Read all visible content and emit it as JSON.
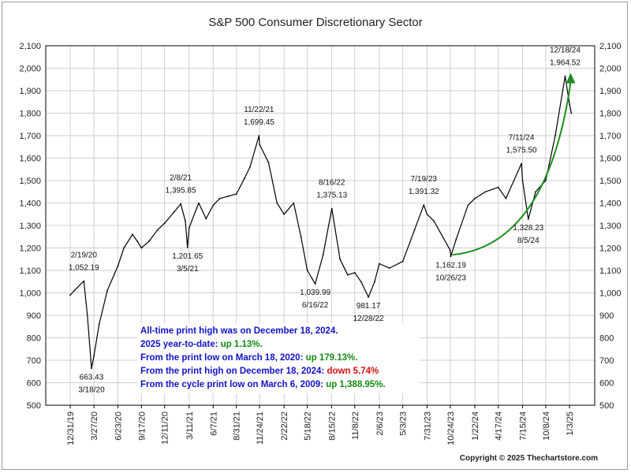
{
  "chart_data": {
    "type": "line",
    "title": "S&P 500 Consumer Discretionary Sector",
    "ylim": [
      500,
      2100
    ],
    "y_ticks": [
      "500",
      "600",
      "700",
      "800",
      "900",
      "1,000",
      "1,100",
      "1,200",
      "1,300",
      "1,400",
      "1,500",
      "1,600",
      "1,700",
      "1,800",
      "1,900",
      "2,000",
      "2,100"
    ],
    "x_tick_labels": [
      "12/31/19",
      "3/27/20",
      "6/23/20",
      "9/17/20",
      "12/11/20",
      "3/11/21",
      "6/7/21",
      "8/31/21",
      "11/24/21",
      "2/22/22",
      "5/18/22",
      "8/15/22",
      "11/8/22",
      "2/6/23",
      "5/3/23",
      "7/31/23",
      "10/24/23",
      "1/22/24",
      "4/17/24",
      "7/15/24",
      "10/8/24",
      "1/3/25"
    ],
    "grid": true,
    "series": [
      {
        "x": [
          "12/31/19",
          "1/15/20",
          "2/19/20",
          "3/3/20",
          "3/18/20",
          "3/27/20",
          "4/15/20",
          "5/15/20",
          "6/23/20",
          "7/15/20",
          "8/15/20",
          "9/2/20",
          "9/17/20",
          "10/15/20",
          "11/15/20",
          "12/11/20",
          "1/15/21",
          "2/8/21",
          "2/25/21",
          "3/5/21",
          "3/11/21",
          "4/15/21",
          "5/12/21",
          "6/7/21",
          "7/1/21",
          "8/1/21",
          "8/31/21",
          "9/30/21",
          "10/20/21",
          "11/22/21",
          "11/24/21",
          "12/27/21",
          "1/27/22",
          "2/22/22",
          "3/29/22",
          "4/25/22",
          "5/18/22",
          "6/16/22",
          "7/15/22",
          "8/16/22",
          "9/15/22",
          "10/13/22",
          "11/8/22",
          "12/1/22",
          "12/28/22",
          "1/20/23",
          "2/6/23",
          "3/15/23",
          "5/3/23",
          "6/15/23",
          "7/19/23",
          "7/31/23",
          "8/25/23",
          "10/24/23",
          "10/26/23",
          "11/15/23",
          "12/28/23",
          "1/22/24",
          "3/1/24",
          "4/17/24",
          "5/15/24",
          "7/11/24",
          "7/15/24",
          "8/5/24",
          "9/1/24",
          "10/8/24",
          "11/12/24",
          "12/18/24",
          "1/3/25",
          "1/10/25"
        ],
        "values": [
          990,
          1010,
          1052.19,
          900,
          663.43,
          720,
          860,
          1010,
          1120,
          1200,
          1260,
          1230,
          1200,
          1230,
          1280,
          1310,
          1360,
          1395.85,
          1320,
          1201.65,
          1290,
          1400,
          1330,
          1390,
          1420,
          1430,
          1440,
          1510,
          1560,
          1699.45,
          1660,
          1580,
          1400,
          1350,
          1400,
          1250,
          1100,
          1039.99,
          1170,
          1375.13,
          1150,
          1080,
          1090,
          1050,
          981.17,
          1050,
          1130,
          1110,
          1140,
          1280,
          1391.32,
          1350,
          1320,
          1190,
          1162.19,
          1240,
          1390,
          1420,
          1450,
          1470,
          1420,
          1575.5,
          1500,
          1328.23,
          1450,
          1500,
          1700,
          1964.52,
          1840,
          1800
        ]
      }
    ],
    "annotations": [
      {
        "date": "2/19/20",
        "value": 1052.19,
        "date_text": "2/19/20",
        "value_text": "1,052.19",
        "position": "above"
      },
      {
        "date": "3/18/20",
        "value": 663.43,
        "date_text": "3/18/20",
        "value_text": "663.43",
        "position": "below"
      },
      {
        "date": "2/8/21",
        "value": 1395.85,
        "date_text": "2/8/21",
        "value_text": "1,395.85",
        "position": "above"
      },
      {
        "date": "3/5/21",
        "value": 1201.65,
        "date_text": "3/5/21",
        "value_text": "1,201.65",
        "position": "below"
      },
      {
        "date": "11/22/21",
        "value": 1699.45,
        "date_text": "11/22/21",
        "value_text": "1,699.45",
        "position": "above"
      },
      {
        "date": "6/16/22",
        "value": 1039.99,
        "date_text": "6/16/22",
        "value_text": "1,039.99",
        "position": "below"
      },
      {
        "date": "8/16/22",
        "value": 1375.13,
        "date_text": "8/16/22",
        "value_text": "1,375.13",
        "position": "above"
      },
      {
        "date": "12/28/22",
        "value": 981.17,
        "date_text": "12/28/22",
        "value_text": "981.17",
        "position": "below"
      },
      {
        "date": "7/19/23",
        "value": 1391.32,
        "date_text": "7/19/23",
        "value_text": "1,391.32",
        "position": "above"
      },
      {
        "date": "10/26/23",
        "value": 1162.19,
        "date_text": "10/26/23",
        "value_text": "1,162.19",
        "position": "below"
      },
      {
        "date": "7/11/24",
        "value": 1575.5,
        "date_text": "7/11/24",
        "value_text": "1,575.50",
        "position": "above"
      },
      {
        "date": "8/5/24",
        "value": 1328.23,
        "date_text": "8/5/24",
        "value_text": "1,328.23",
        "position": "below"
      },
      {
        "date": "12/18/24",
        "value": 1964.52,
        "date_text": "12/18/24",
        "value_text": "1,964.52",
        "position": "above"
      }
    ],
    "trend_arrow": {
      "from_date": "10/26/23",
      "from_value": 1162.19,
      "to_date": "12/18/24",
      "to_value": 1964.52,
      "color": "#1f8f1f"
    },
    "line_color": "#000000",
    "grid_color": "#cfcfcf"
  },
  "notes": {
    "line1": "All-time print high was on December 18, 2024.",
    "line2_prefix": "2025 year-to-date:",
    "line2_value": "up 1.13%.",
    "line3_prefix": "From the print low on March 18, 2020:",
    "line3_value": "up 179.13%.",
    "line4_prefix": "From the print high on December 18, 2024:",
    "line4_value": "down 5.74%",
    "line5_prefix": "From the cycle print low on March 6, 2009:",
    "line5_value": "up 1,388.95%.",
    "colors": {
      "blue": "#1212c8",
      "green": "#138a13",
      "red": "#d01010"
    }
  },
  "copyright": "Copyright © 2025 Thechartstore.com"
}
